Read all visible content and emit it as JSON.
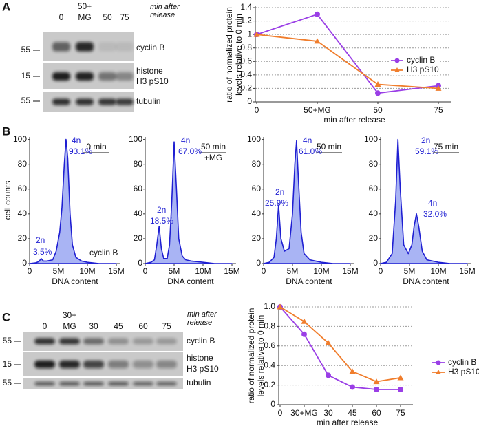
{
  "panel_labels": [
    "A",
    "B",
    "C"
  ],
  "blots": [
    {
      "lanes": [
        [
          "0"
        ],
        [
          "50+",
          "MG"
        ],
        [
          "50"
        ],
        [
          "75"
        ]
      ],
      "note": [
        "min after",
        "release"
      ],
      "markers": [
        55,
        15,
        55
      ],
      "bands": [
        [
          "cyclin B"
        ],
        [
          "histone",
          "H3 pS10"
        ],
        [
          "tubulin"
        ]
      ]
    },
    {
      "lanes": [
        [
          "0"
        ],
        [
          "30+",
          "MG"
        ],
        [
          "30"
        ],
        [
          "45"
        ],
        [
          "60"
        ],
        [
          "75"
        ]
      ],
      "note": [
        "min after",
        "release"
      ],
      "markers": [
        55,
        15,
        55
      ],
      "bands": [
        [
          "cyclin B"
        ],
        [
          "histone",
          "H3 pS10"
        ],
        [
          "tubulin"
        ]
      ]
    }
  ],
  "chart_data": [
    {
      "type": "line",
      "ylabel": [
        "ratio of normalized protein",
        "levels relative to 0 min"
      ],
      "xlabel": "min after release",
      "categories": [
        "0",
        "50+MG",
        "50",
        "75"
      ],
      "series": [
        {
          "name": "cyclin B",
          "color": "#9a3ee6",
          "marker": "circle",
          "values": [
            1,
            1.3,
            0.13,
            0.24
          ]
        },
        {
          "name": "H3 pS10",
          "color": "#f07d2c",
          "marker": "triangle",
          "values": [
            1,
            0.9,
            0.26,
            0.2
          ]
        }
      ],
      "ylim": [
        0,
        1.4
      ],
      "yticks": [
        0,
        0.2,
        0.4,
        0.6,
        0.8,
        1,
        1.2,
        1.4
      ],
      "grid": true,
      "legend": "right"
    },
    {
      "type": "area",
      "ylabel": "cell counts",
      "xlabel": "DNA content",
      "color": "#1f1fd2",
      "x": [
        0,
        1000000,
        1600000,
        2000000,
        2400000,
        3000000,
        4000000,
        4600000,
        5200000,
        5600000,
        6000000,
        6300000,
        6600000,
        7000000,
        7400000,
        8000000,
        9000000,
        10000000,
        12000000,
        15000000
      ],
      "values": [
        0,
        0.5,
        1.5,
        4,
        2,
        2,
        3,
        10,
        25,
        45,
        80,
        100,
        85,
        40,
        15,
        5,
        2,
        1,
        0,
        0
      ],
      "xlim": [
        0,
        15700000
      ],
      "ylim": [
        0,
        102
      ],
      "xticks": [
        0,
        {
          "value": 5000000,
          "label": "5M"
        },
        {
          "value": 10000000,
          "label": "10M"
        },
        {
          "value": 15000000,
          "label": "15M"
        }
      ],
      "yticks": [
        0,
        20,
        40,
        60,
        80,
        100
      ],
      "sample": [
        "0 min"
      ],
      "peaks": [
        {
          "ploidy": "4n",
          "percent": "93.1%"
        },
        {
          "ploidy": "2n",
          "percent": "3.5%"
        }
      ],
      "note": "cyclin B"
    },
    {
      "type": "area",
      "xlabel": "DNA content",
      "color": "#1f1fd2",
      "x": [
        0,
        1000000,
        1600000,
        2000000,
        2400000,
        2800000,
        3200000,
        3800000,
        4200000,
        4600000,
        5000000,
        5400000,
        5800000,
        6400000,
        7000000,
        8000000,
        10000000,
        12000000,
        15000000
      ],
      "values": [
        0,
        1,
        3,
        15,
        30,
        12,
        4,
        4,
        15,
        50,
        98,
        60,
        20,
        6,
        3,
        2,
        1,
        0,
        0
      ],
      "xlim": [
        0,
        15700000
      ],
      "ylim": [
        0,
        102
      ],
      "xticks": [
        0,
        {
          "value": 5000000,
          "label": "5M"
        },
        {
          "value": 10000000,
          "label": "10M"
        },
        {
          "value": 15000000,
          "label": "15M"
        }
      ],
      "yticks": [
        0,
        20,
        40,
        60,
        80,
        100
      ],
      "sample": [
        "50 min",
        "+MG"
      ],
      "peaks": [
        {
          "ploidy": "4n",
          "percent": "67.0%"
        },
        {
          "ploidy": "2n",
          "percent": "18.5%"
        }
      ]
    },
    {
      "type": "area",
      "xlabel": "DNA content",
      "color": "#1f1fd2",
      "x": [
        0,
        1000000,
        1800000,
        2200000,
        2600000,
        3000000,
        3600000,
        4400000,
        5000000,
        5400000,
        5700000,
        6000000,
        6500000,
        7000000,
        8000000,
        10000000,
        12000000,
        15000000
      ],
      "values": [
        0,
        1,
        5,
        20,
        47,
        20,
        10,
        12,
        40,
        80,
        99,
        70,
        25,
        8,
        3,
        1,
        0,
        0
      ],
      "xlim": [
        0,
        15700000
      ],
      "ylim": [
        0,
        102
      ],
      "xticks": [
        0,
        {
          "value": 5000000,
          "label": "5M"
        },
        {
          "value": 10000000,
          "label": "10M"
        },
        {
          "value": 15000000,
          "label": "15M"
        }
      ],
      "yticks": [
        0,
        20,
        40,
        60,
        80,
        100
      ],
      "sample": [
        "50 min"
      ],
      "peaks": [
        {
          "ploidy": "4n",
          "percent": "61.0%"
        },
        {
          "ploidy": "2n",
          "percent": "25.9%"
        }
      ]
    },
    {
      "type": "area",
      "xlabel": "DNA content",
      "color": "#1f1fd2",
      "x": [
        0,
        1000000,
        2000000,
        2600000,
        3000000,
        3400000,
        4000000,
        4800000,
        5400000,
        5800000,
        6200000,
        6600000,
        7200000,
        8000000,
        10000000,
        12000000,
        15000000
      ],
      "values": [
        0,
        1,
        8,
        50,
        100,
        60,
        15,
        8,
        15,
        30,
        40,
        30,
        10,
        3,
        1,
        0,
        0
      ],
      "xlim": [
        0,
        15700000
      ],
      "ylim": [
        0,
        102
      ],
      "xticks": [
        0,
        {
          "value": 5000000,
          "label": "5M"
        },
        {
          "value": 10000000,
          "label": "10M"
        },
        {
          "value": 15000000,
          "label": "15M"
        }
      ],
      "yticks": [
        0,
        20,
        40,
        60,
        80,
        100
      ],
      "sample": [
        "75 min"
      ],
      "peaks": [
        {
          "ploidy": "2n",
          "percent": "59.1%"
        },
        {
          "ploidy": "4n",
          "percent": "32.0%"
        }
      ]
    },
    {
      "type": "line",
      "ylabel": [
        "ratio of normalized protein",
        "levels relative to 0 min"
      ],
      "xlabel": "min after release",
      "categories": [
        "0",
        "30+MG",
        "30",
        "45",
        "60",
        "75"
      ],
      "series": [
        {
          "name": "cyclin B",
          "color": "#9a3ee6",
          "marker": "circle",
          "values": [
            1,
            0.72,
            0.3,
            0.18,
            0.155,
            0.155
          ]
        },
        {
          "name": "H3 pS10",
          "color": "#f07d2c",
          "marker": "triangle",
          "values": [
            1,
            0.85,
            0.63,
            0.34,
            0.235,
            0.275
          ]
        }
      ],
      "ylim": [
        0,
        1
      ],
      "yticks": [
        0,
        0.2,
        0.4,
        0.6,
        0.8,
        {
          "value": 1,
          "label": "1.0"
        }
      ],
      "grid": true,
      "legend": "right"
    }
  ]
}
